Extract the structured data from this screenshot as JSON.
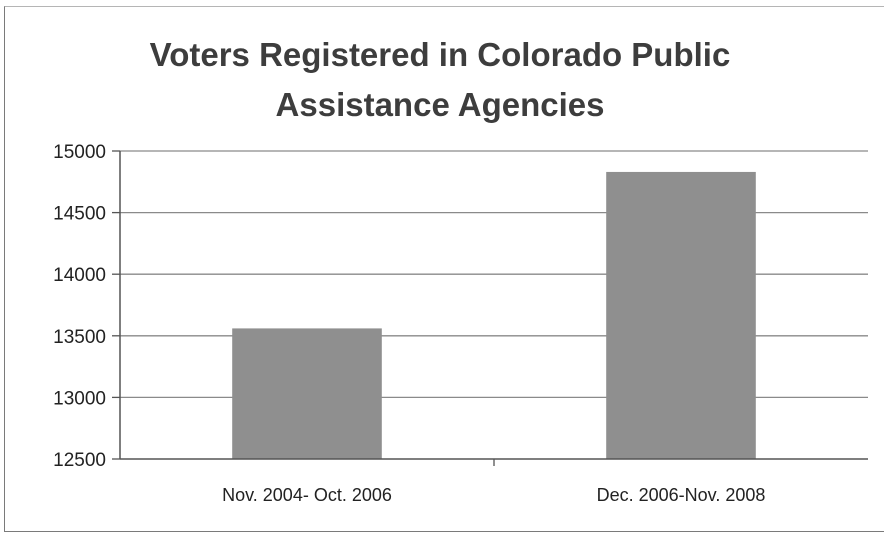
{
  "chart_data": {
    "type": "bar",
    "title": "Voters Registered in Colorado Public Assistance Agencies",
    "categories": [
      "Nov. 2004- Oct. 2006",
      "Dec. 2006-Nov. 2008"
    ],
    "values": [
      13560,
      14830
    ],
    "ylim": [
      12500,
      15000
    ],
    "yticks": [
      12500,
      13000,
      13500,
      14000,
      14500,
      15000
    ],
    "xlabel": "",
    "ylabel": "",
    "grid": true,
    "legend": "none",
    "bar_color": "#8f8f8f",
    "gridline_color": "#8a8a8a"
  }
}
